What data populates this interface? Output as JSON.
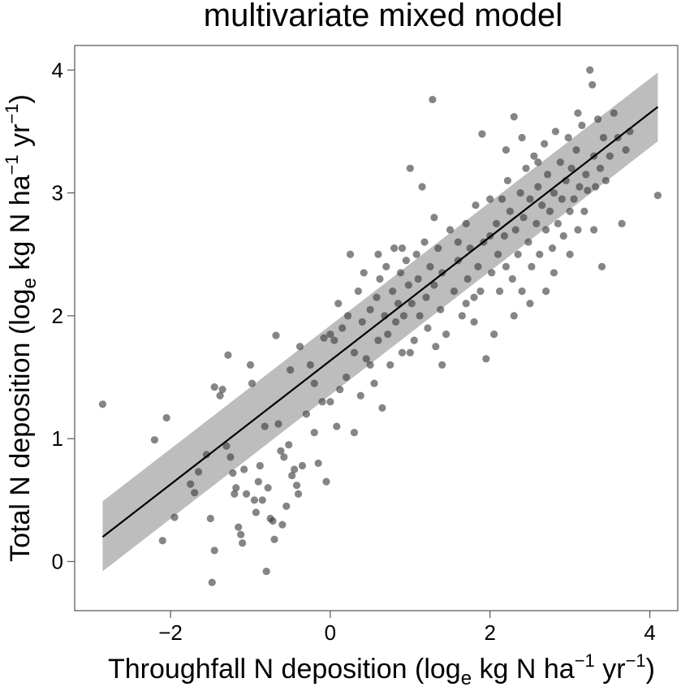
{
  "chart_data": {
    "type": "scatter",
    "title": "multivariate mixed model",
    "xlabel": {
      "pre": "Throughfall N deposition (log",
      "sub": "e",
      "mid": " kg N ha",
      "sup1": "−1",
      "mid2": " yr",
      "sup2": "−1",
      "post": ")"
    },
    "ylabel": {
      "pre": "Total N deposition (log",
      "sub": "e",
      "mid": " kg N ha",
      "sup1": "−1",
      "mid2": " yr",
      "sup2": "−1",
      "post": ")"
    },
    "xlim": [
      -3.2,
      4.35
    ],
    "ylim": [
      -0.4,
      4.2
    ],
    "xticks": [
      -2,
      0,
      2,
      4
    ],
    "xtick_labels": [
      "−2",
      "0",
      "2",
      "4"
    ],
    "yticks": [
      0,
      1,
      2,
      3,
      4
    ],
    "ytick_labels": [
      "0",
      "1",
      "2",
      "3",
      "4"
    ],
    "grid": false,
    "colors": {
      "points": "#3a3a3a",
      "band": "#bdbdbd",
      "line": "#000000",
      "frame": "#555555"
    },
    "fit_line": {
      "x": [
        -2.85,
        4.1
      ],
      "y": [
        0.2,
        3.7
      ]
    },
    "ci_band": {
      "x": [
        -2.85,
        4.1
      ],
      "lower": [
        -0.08,
        3.42
      ],
      "upper": [
        0.49,
        3.98
      ]
    },
    "points": [
      [
        -2.85,
        1.28
      ],
      [
        -2.2,
        0.99
      ],
      [
        -2.05,
        1.17
      ],
      [
        -2.1,
        0.17
      ],
      [
        -1.95,
        0.36
      ],
      [
        -1.75,
        0.63
      ],
      [
        -1.7,
        0.56
      ],
      [
        -1.65,
        0.73
      ],
      [
        -1.55,
        0.87
      ],
      [
        -1.5,
        0.35
      ],
      [
        -1.45,
        0.09
      ],
      [
        -1.48,
        -0.17
      ],
      [
        -1.45,
        1.42
      ],
      [
        -1.38,
        1.35
      ],
      [
        -1.35,
        1.4
      ],
      [
        -1.3,
        0.94
      ],
      [
        -1.28,
        1.68
      ],
      [
        -1.25,
        0.85
      ],
      [
        -1.22,
        0.72
      ],
      [
        -1.2,
        0.55
      ],
      [
        -1.18,
        0.6
      ],
      [
        -1.15,
        0.28
      ],
      [
        -1.12,
        0.22
      ],
      [
        -1.1,
        0.15
      ],
      [
        -1.08,
        0.75
      ],
      [
        -1.05,
        0.55
      ],
      [
        -1.0,
        1.6
      ],
      [
        -0.98,
        1.45
      ],
      [
        -0.95,
        0.5
      ],
      [
        -0.93,
        0.4
      ],
      [
        -0.9,
        0.65
      ],
      [
        -0.88,
        0.78
      ],
      [
        -0.85,
        0.5
      ],
      [
        -0.82,
        1.1
      ],
      [
        -0.8,
        -0.08
      ],
      [
        -0.78,
        0.6
      ],
      [
        -0.75,
        0.35
      ],
      [
        -0.72,
        0.33
      ],
      [
        -0.7,
        0.18
      ],
      [
        -0.68,
        1.84
      ],
      [
        -0.65,
        1.12
      ],
      [
        -0.62,
        0.9
      ],
      [
        -0.6,
        0.3
      ],
      [
        -0.58,
        0.85
      ],
      [
        -0.55,
        0.45
      ],
      [
        -0.52,
        0.95
      ],
      [
        -0.5,
        1.56
      ],
      [
        -0.48,
        0.7
      ],
      [
        -0.45,
        0.75
      ],
      [
        -0.42,
        0.62
      ],
      [
        -0.4,
        0.55
      ],
      [
        -0.38,
        1.75
      ],
      [
        -0.35,
        0.78
      ],
      [
        -0.3,
        1.2
      ],
      [
        -0.25,
        1.6
      ],
      [
        -0.2,
        1.45
      ],
      [
        -0.15,
        0.8
      ],
      [
        -0.1,
        1.3
      ],
      [
        -0.08,
        1.82
      ],
      [
        -0.05,
        0.65
      ],
      [
        0.0,
        1.85
      ],
      [
        0.05,
        1.8
      ],
      [
        0.08,
        1.1
      ],
      [
        0.1,
        2.1
      ],
      [
        0.12,
        1.4
      ],
      [
        0.15,
        1.9
      ],
      [
        0.2,
        1.5
      ],
      [
        0.22,
        2.0
      ],
      [
        0.25,
        2.5
      ],
      [
        0.3,
        1.7
      ],
      [
        0.35,
        2.2
      ],
      [
        0.38,
        1.35
      ],
      [
        0.4,
        1.95
      ],
      [
        0.42,
        2.35
      ],
      [
        0.45,
        1.65
      ],
      [
        0.5,
        2.05
      ],
      [
        0.55,
        1.45
      ],
      [
        0.58,
        2.15
      ],
      [
        0.6,
        1.8
      ],
      [
        0.62,
        2.3
      ],
      [
        0.65,
        1.25
      ],
      [
        0.68,
        2.0
      ],
      [
        0.7,
        2.4
      ],
      [
        0.72,
        1.85
      ],
      [
        0.75,
        1.6
      ],
      [
        0.78,
        2.2
      ],
      [
        0.8,
        2.55
      ],
      [
        0.82,
        1.95
      ],
      [
        0.85,
        2.1
      ],
      [
        0.88,
        2.35
      ],
      [
        0.9,
        1.7
      ],
      [
        0.92,
        2.0
      ],
      [
        0.95,
        2.45
      ],
      [
        0.98,
        2.25
      ],
      [
        1.0,
        3.2
      ],
      [
        1.02,
        2.1
      ],
      [
        1.05,
        1.8
      ],
      [
        1.08,
        2.5
      ],
      [
        1.1,
        2.3
      ],
      [
        1.12,
        2.0
      ],
      [
        1.15,
        3.05
      ],
      [
        1.18,
        2.6
      ],
      [
        1.2,
        2.15
      ],
      [
        1.22,
        1.9
      ],
      [
        1.25,
        2.4
      ],
      [
        1.28,
        3.76
      ],
      [
        1.3,
        2.25
      ],
      [
        1.32,
        1.75
      ],
      [
        1.35,
        2.55
      ],
      [
        1.38,
        2.05
      ],
      [
        1.4,
        2.35
      ],
      [
        1.45,
        1.85
      ],
      [
        1.5,
        2.7
      ],
      [
        1.55,
        2.2
      ],
      [
        1.6,
        2.45
      ],
      [
        1.65,
        2.0
      ],
      [
        1.7,
        2.75
      ],
      [
        1.72,
        2.3
      ],
      [
        1.75,
        2.55
      ],
      [
        1.8,
        2.15
      ],
      [
        1.82,
        2.9
      ],
      [
        1.85,
        2.4
      ],
      [
        1.88,
        2.2
      ],
      [
        1.9,
        3.48
      ],
      [
        1.92,
        2.6
      ],
      [
        1.95,
        1.65
      ],
      [
        2.0,
        2.95
      ],
      [
        2.02,
        2.35
      ],
      [
        2.05,
        1.85
      ],
      [
        2.08,
        2.75
      ],
      [
        2.1,
        2.5
      ],
      [
        2.12,
        2.2
      ],
      [
        2.15,
        2.95
      ],
      [
        2.18,
        2.65
      ],
      [
        2.2,
        2.4
      ],
      [
        2.22,
        3.1
      ],
      [
        2.25,
        2.85
      ],
      [
        2.28,
        2.3
      ],
      [
        2.3,
        3.62
      ],
      [
        2.32,
        2.7
      ],
      [
        2.35,
        2.5
      ],
      [
        2.38,
        3.0
      ],
      [
        2.4,
        2.2
      ],
      [
        2.42,
        2.8
      ],
      [
        2.45,
        3.2
      ],
      [
        2.48,
        2.6
      ],
      [
        2.5,
        2.95
      ],
      [
        2.52,
        2.4
      ],
      [
        2.55,
        3.3
      ],
      [
        2.58,
        2.75
      ],
      [
        2.6,
        3.05
      ],
      [
        2.62,
        2.5
      ],
      [
        2.65,
        2.9
      ],
      [
        2.68,
        3.4
      ],
      [
        2.7,
        2.7
      ],
      [
        2.72,
        3.15
      ],
      [
        2.75,
        2.85
      ],
      [
        2.78,
        2.55
      ],
      [
        2.8,
        3.0
      ],
      [
        2.82,
        3.5
      ],
      [
        2.85,
        2.75
      ],
      [
        2.88,
        3.25
      ],
      [
        2.9,
        2.95
      ],
      [
        2.92,
        2.65
      ],
      [
        2.95,
        3.1
      ],
      [
        2.98,
        3.45
      ],
      [
        3.0,
        2.85
      ],
      [
        3.02,
        3.2
      ],
      [
        3.05,
        2.95
      ],
      [
        3.08,
        3.35
      ],
      [
        3.1,
        2.7
      ],
      [
        3.12,
        3.05
      ],
      [
        3.15,
        3.55
      ],
      [
        3.18,
        2.85
      ],
      [
        3.2,
        3.15
      ],
      [
        3.22,
        3.02
      ],
      [
        3.25,
        4.0
      ],
      [
        3.28,
        3.88
      ],
      [
        3.3,
        3.3
      ],
      [
        3.32,
        3.05
      ],
      [
        3.35,
        3.6
      ],
      [
        3.38,
        3.2
      ],
      [
        3.4,
        2.4
      ],
      [
        3.42,
        3.45
      ],
      [
        3.45,
        3.1
      ],
      [
        3.5,
        3.3
      ],
      [
        3.55,
        3.65
      ],
      [
        3.6,
        3.45
      ],
      [
        3.65,
        2.75
      ],
      [
        3.7,
        3.35
      ],
      [
        3.75,
        3.5
      ],
      [
        4.1,
        2.98
      ],
      [
        2.3,
        2.0
      ],
      [
        2.5,
        2.1
      ],
      [
        2.7,
        2.2
      ],
      [
        1.6,
        2.6
      ],
      [
        1.0,
        1.7
      ],
      [
        0.6,
        2.5
      ],
      [
        -0.2,
        1.05
      ],
      [
        0.0,
        1.3
      ],
      [
        0.3,
        1.05
      ],
      [
        0.5,
        1.6
      ],
      [
        0.9,
        2.55
      ],
      [
        1.3,
        2.8
      ],
      [
        1.7,
        2.1
      ],
      [
        2.0,
        2.65
      ],
      [
        2.2,
        3.35
      ],
      [
        2.4,
        3.45
      ],
      [
        2.6,
        3.25
      ],
      [
        2.8,
        2.35
      ],
      [
        3.0,
        2.5
      ],
      [
        3.1,
        3.65
      ],
      [
        3.3,
        2.7
      ],
      [
        1.4,
        1.6
      ],
      [
        1.8,
        1.95
      ]
    ]
  }
}
